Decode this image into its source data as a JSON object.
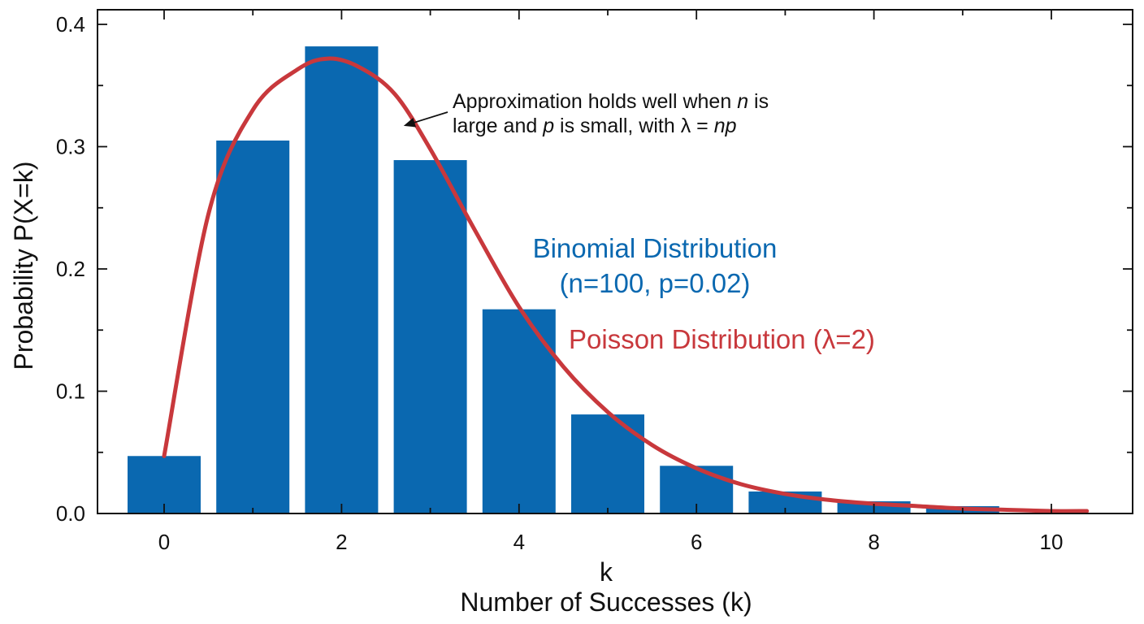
{
  "chart_data": {
    "type": "bar",
    "title": "",
    "xlabel": "k",
    "xlabel_secondary": "Number of Successes (k)",
    "ylabel": "Probability P(X=k)",
    "xlim": [
      -0.5,
      10.9
    ],
    "ylim": [
      0,
      0.41
    ],
    "x_ticks": [
      0,
      2,
      4,
      6,
      8,
      10
    ],
    "y_ticks": [
      0.0,
      0.1,
      0.2,
      0.3,
      0.4
    ],
    "y_tick_labels": [
      "0.0",
      "0.1",
      "0.2",
      "0.3",
      "0.4"
    ],
    "grid": false,
    "colors": {
      "binomial": "#0a68b0",
      "poisson": "#c8383c",
      "axis": "#111111"
    },
    "series": [
      {
        "name": "Binomial Distribution",
        "name_line2": "(n=100, p=0.02)",
        "type": "bar",
        "x": [
          0,
          1,
          2,
          3,
          4,
          5,
          6,
          7,
          8,
          9
        ],
        "values": [
          0.047,
          0.305,
          0.382,
          0.289,
          0.167,
          0.081,
          0.039,
          0.018,
          0.01,
          0.006
        ]
      },
      {
        "name": "Poisson Distribution (λ=2)",
        "type": "line",
        "x": [
          0,
          0.5,
          1,
          1.5,
          1.85,
          2.2,
          2.6,
          3,
          3.5,
          4,
          4.5,
          5,
          5.5,
          6,
          6.5,
          7,
          7.5,
          8,
          8.5,
          9,
          9.5,
          10,
          10.4
        ],
        "values": [
          0.047,
          0.245,
          0.33,
          0.363,
          0.372,
          0.365,
          0.343,
          0.298,
          0.232,
          0.169,
          0.12,
          0.083,
          0.056,
          0.037,
          0.024,
          0.016,
          0.011,
          0.008,
          0.006,
          0.004,
          0.003,
          0.002,
          0.002
        ]
      }
    ],
    "annotation": {
      "line1_pre": "Approximation holds well when ",
      "line1_var": "n",
      "line1_post": " is",
      "line2_pre": "large and ",
      "line2_var1": "p",
      "line2_mid": " is small, with λ = ",
      "line2_var2": "np",
      "arrow_target": {
        "x": 2.7,
        "y": 0.317
      }
    }
  }
}
